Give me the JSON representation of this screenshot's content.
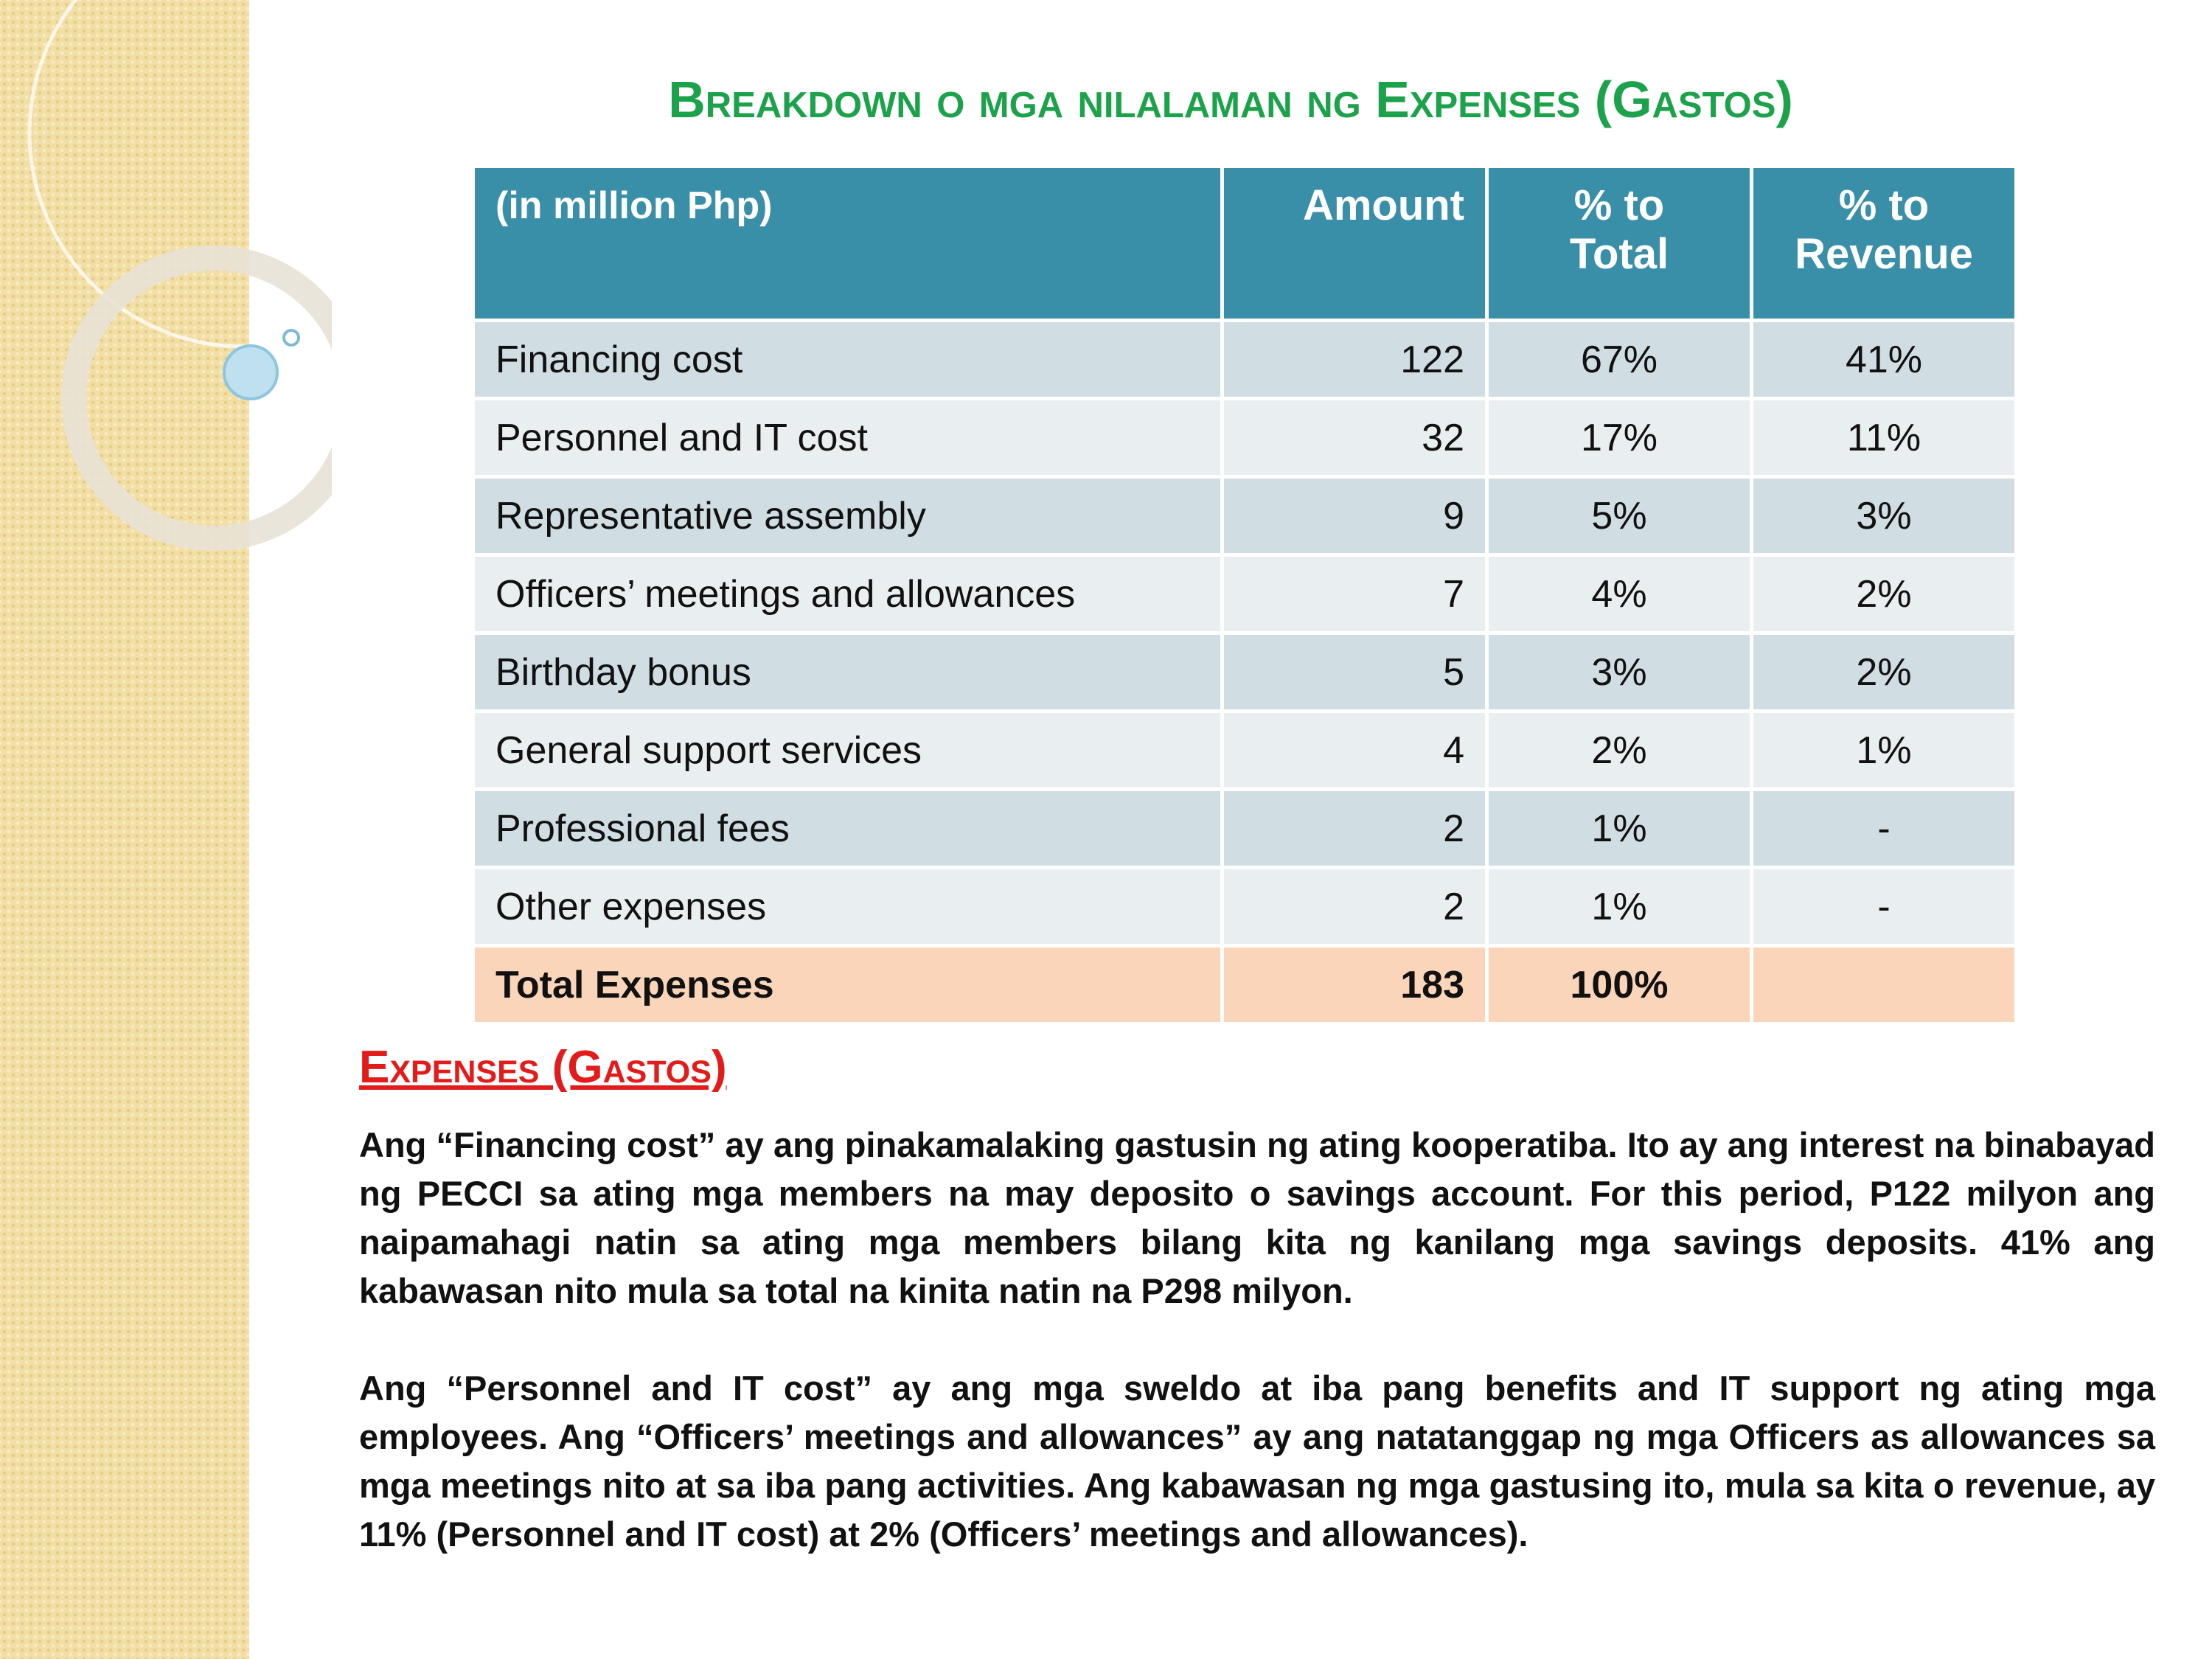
{
  "title": "Breakdown o mga nilalaman ng Expenses (Gastos)",
  "table": {
    "header": [
      "(in million Php)",
      "Amount",
      "% to Total",
      "% to Revenue"
    ],
    "rows": [
      [
        "Financing cost",
        "122",
        "67%",
        "41%"
      ],
      [
        "Personnel and IT cost",
        "32",
        "17%",
        "11%"
      ],
      [
        "Representative assembly",
        "9",
        "5%",
        "3%"
      ],
      [
        "Officers’ meetings and allowances",
        "7",
        "4%",
        "2%"
      ],
      [
        "Birthday bonus",
        "5",
        "3%",
        "2%"
      ],
      [
        "General support services",
        "4",
        "2%",
        "1%"
      ],
      [
        "Professional fees",
        "2",
        "1%",
        "-"
      ],
      [
        "Other expenses",
        "2",
        "1%",
        "-"
      ]
    ],
    "total": [
      "Total Expenses",
      "183",
      "100%"
    ]
  },
  "section": {
    "heading": "Expenses (Gastos)",
    "paragraphs": [
      "Ang “Financing cost” ay ang pinakamalaking gastusin ng ating kooperatiba.  Ito ay ang interest na binabayad ng PECCI sa ating mga members na may deposito o savings account.  For this period, P122 milyon ang naipamahagi natin sa ating mga members bilang kita ng kanilang mga savings deposits.  41% ang kabawasan nito mula sa total na kinita natin na P298 milyon.",
      "Ang “Personnel and IT cost” ay ang mga sweldo at iba pang benefits and IT support ng ating mga employees.  Ang “Officers’ meetings and allowances” ay ang natatanggap ng mga Officers as allowances sa mga meetings nito at sa iba pang activities. Ang kabawasan ng mga gastusing ito, mula sa kita o revenue, ay 11% (Personnel and IT cost) at 2% (Officers’ meetings and allowances)."
    ]
  }
}
